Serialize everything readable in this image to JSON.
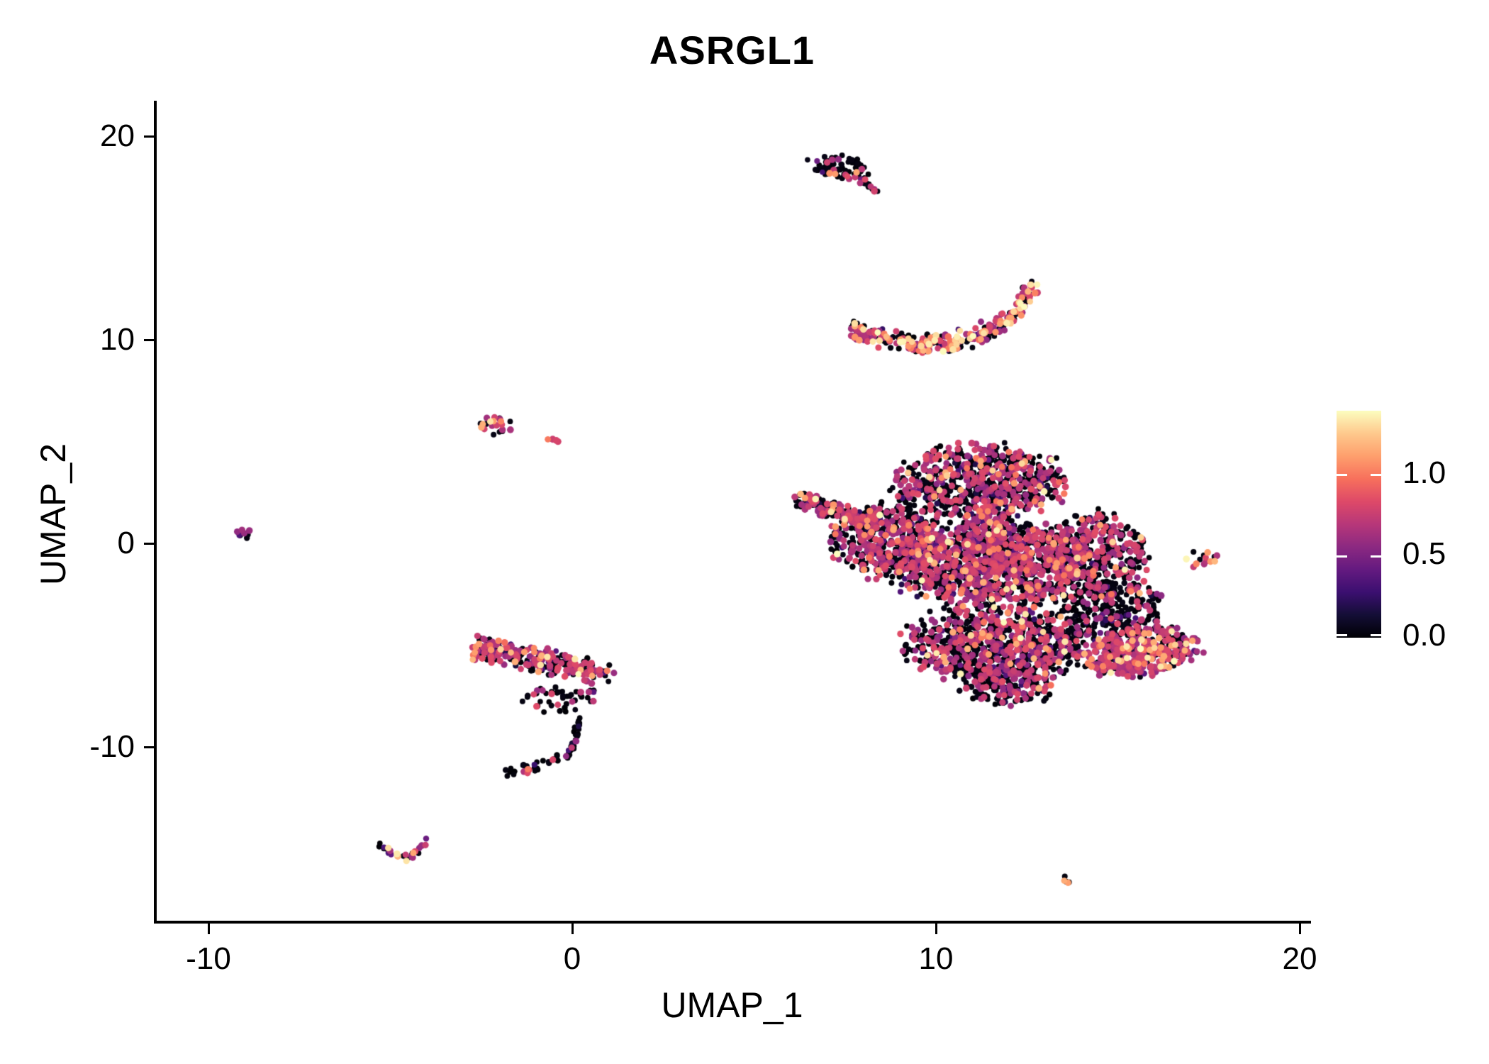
{
  "chart_data": {
    "type": "scatter",
    "title": "ASRGL1",
    "xlabel": "UMAP_1",
    "ylabel": "UMAP_2",
    "x_ticks": [
      -10,
      0,
      10,
      20
    ],
    "y_ticks": [
      20,
      10,
      0,
      -10
    ],
    "xlim": [
      -11.4,
      20.2
    ],
    "ylim": [
      -18.7,
      21.8
    ],
    "grid": false,
    "point_unit": "cells colored by ASRGL1 expression",
    "legend": {
      "position": "right",
      "min": 0.0,
      "max": 1.39,
      "tick_labels": [
        "1.0",
        "0.5",
        "0.0"
      ],
      "tick_values": [
        1.0,
        0.5,
        0.0
      ],
      "colormap": "magma",
      "stops": [
        "#000004",
        "#140E36",
        "#3B0F70",
        "#641A80",
        "#8C2981",
        "#B73779",
        "#DE4968",
        "#F7705C",
        "#FE9F6D",
        "#FEC98D",
        "#FCFDBF"
      ]
    },
    "expression_buckets": [
      {
        "name": "zero",
        "range": [
          0.0,
          0.05
        ]
      },
      {
        "name": "low",
        "range": [
          0.15,
          0.45
        ]
      },
      {
        "name": "mid",
        "range": [
          0.55,
          0.85
        ]
      },
      {
        "name": "high",
        "range": [
          0.95,
          1.2
        ]
      },
      {
        "name": "max",
        "range": [
          1.25,
          1.39
        ]
      }
    ],
    "clusters": [
      {
        "id": "top-blob",
        "shape": "blob",
        "center": [
          7.35,
          18.45
        ],
        "rx": 0.85,
        "ry": 0.62,
        "rot": -25,
        "n": 72,
        "mix": [
          0.84,
          0.04,
          0.08,
          0.02,
          0.02
        ]
      },
      {
        "id": "top-tail",
        "shape": "band",
        "from": [
          7.75,
          18.05
        ],
        "to": [
          8.45,
          17.25
        ],
        "spread": 0.22,
        "n": 16,
        "mix": [
          0.72,
          0.04,
          0.2,
          0.04,
          0.0
        ]
      },
      {
        "id": "crescent",
        "shape": "arc",
        "pts": [
          [
            7.65,
            10.55
          ],
          [
            8.6,
            10.0
          ],
          [
            9.6,
            9.8
          ],
          [
            10.5,
            9.9
          ],
          [
            11.3,
            10.3
          ],
          [
            12.0,
            11.05
          ],
          [
            12.7,
            12.55
          ]
        ],
        "spread": 0.55,
        "n": 310,
        "mix": [
          0.38,
          0.07,
          0.33,
          0.14,
          0.08
        ]
      },
      {
        "id": "left-mid-small",
        "shape": "blob",
        "center": [
          -2.1,
          5.8
        ],
        "rx": 0.55,
        "ry": 0.42,
        "rot": -12,
        "n": 22,
        "mix": [
          0.3,
          0.05,
          0.45,
          0.15,
          0.05
        ]
      },
      {
        "id": "left-mid-satellite",
        "shape": "blob",
        "center": [
          -0.5,
          5.05
        ],
        "rx": 0.2,
        "ry": 0.16,
        "rot": -30,
        "n": 4,
        "mix": [
          0.3,
          0.0,
          0.3,
          0.4,
          0.0
        ]
      },
      {
        "id": "far-left-tiny",
        "shape": "blob",
        "center": [
          -9.0,
          0.5
        ],
        "rx": 0.3,
        "ry": 0.22,
        "rot": -20,
        "n": 9,
        "mix": [
          0.3,
          0.05,
          0.6,
          0.05,
          0.0
        ]
      },
      {
        "id": "sickle-band",
        "shape": "band",
        "from": [
          -2.75,
          -5.1
        ],
        "to": [
          0.95,
          -6.4
        ],
        "spread": 0.75,
        "n": 280,
        "mix": [
          0.48,
          0.06,
          0.38,
          0.06,
          0.02
        ]
      },
      {
        "id": "sickle-scatter",
        "shape": "blob",
        "center": [
          -0.3,
          -7.6
        ],
        "rx": 1.1,
        "ry": 0.75,
        "rot": 0,
        "n": 45,
        "mix": [
          0.72,
          0.04,
          0.22,
          0.02,
          0.0
        ]
      },
      {
        "id": "sickle-hook",
        "shape": "arc",
        "pts": [
          [
            0.2,
            -8.3
          ],
          [
            0.1,
            -9.6
          ],
          [
            -0.1,
            -10.4
          ],
          [
            -0.9,
            -11.0
          ],
          [
            -1.95,
            -11.3
          ]
        ],
        "spread": 0.3,
        "n": 58,
        "mix": [
          0.7,
          0.05,
          0.22,
          0.03,
          0.0
        ]
      },
      {
        "id": "main-arm",
        "shape": "band",
        "from": [
          6.15,
          2.2
        ],
        "to": [
          8.3,
          1.0
        ],
        "spread": 0.5,
        "n": 175,
        "mix": [
          0.52,
          0.06,
          0.36,
          0.05,
          0.01
        ]
      },
      {
        "id": "main-top",
        "shape": "blob",
        "center": [
          11.2,
          3.0
        ],
        "rx": 2.3,
        "ry": 1.8,
        "rot": 0,
        "n": 700,
        "mix": [
          0.52,
          0.06,
          0.37,
          0.04,
          0.01
        ]
      },
      {
        "id": "main-left-wing",
        "shape": "blob",
        "center": [
          8.7,
          0.2
        ],
        "rx": 1.5,
        "ry": 1.9,
        "rot": 0,
        "n": 450,
        "mix": [
          0.5,
          0.06,
          0.38,
          0.05,
          0.01
        ]
      },
      {
        "id": "main-core",
        "shape": "blob",
        "center": [
          11.5,
          -1.0
        ],
        "rx": 2.7,
        "ry": 2.1,
        "rot": 0,
        "n": 1250,
        "mix": [
          0.5,
          0.05,
          0.39,
          0.05,
          0.01
        ]
      },
      {
        "id": "main-lower",
        "shape": "blob",
        "center": [
          11.7,
          -4.9
        ],
        "rx": 2.5,
        "ry": 1.9,
        "rot": 0,
        "n": 850,
        "mix": [
          0.55,
          0.05,
          0.36,
          0.03,
          0.01
        ]
      },
      {
        "id": "main-bottom-tip",
        "shape": "blob",
        "center": [
          12.0,
          -7.0
        ],
        "rx": 1.3,
        "ry": 0.9,
        "rot": 0,
        "n": 160,
        "mix": [
          0.62,
          0.05,
          0.31,
          0.02,
          0.0
        ]
      },
      {
        "id": "main-right-upper",
        "shape": "blob",
        "center": [
          14.5,
          -0.5
        ],
        "rx": 1.4,
        "ry": 2.0,
        "rot": 0,
        "n": 380,
        "mix": [
          0.52,
          0.05,
          0.38,
          0.04,
          0.01
        ]
      },
      {
        "id": "main-right-fringe",
        "shape": "blob",
        "center": [
          14.8,
          -3.2
        ],
        "rx": 1.5,
        "ry": 1.3,
        "rot": 0,
        "n": 230,
        "mix": [
          0.66,
          0.06,
          0.26,
          0.02,
          0.0
        ]
      },
      {
        "id": "main-right-lower",
        "shape": "blob",
        "center": [
          15.6,
          -5.3
        ],
        "rx": 1.6,
        "ry": 1.15,
        "rot": 15,
        "n": 400,
        "mix": [
          0.32,
          0.05,
          0.49,
          0.11,
          0.03
        ]
      },
      {
        "id": "right-small",
        "shape": "blob",
        "center": [
          17.4,
          -0.75
        ],
        "rx": 0.5,
        "ry": 0.55,
        "rot": 0,
        "n": 14,
        "mix": [
          0.28,
          0.05,
          0.42,
          0.15,
          0.1
        ]
      },
      {
        "id": "bottom-v-left",
        "shape": "band",
        "from": [
          -5.35,
          -14.75
        ],
        "to": [
          -4.55,
          -15.55
        ],
        "spread": 0.25,
        "n": 14,
        "mix": [
          0.42,
          0.05,
          0.38,
          0.12,
          0.03
        ]
      },
      {
        "id": "bottom-v-right",
        "shape": "band",
        "from": [
          -4.55,
          -15.55
        ],
        "to": [
          -3.95,
          -14.65
        ],
        "spread": 0.22,
        "n": 13,
        "mix": [
          0.5,
          0.05,
          0.4,
          0.05,
          0.0
        ]
      },
      {
        "id": "bottom-right-tiny",
        "shape": "band",
        "from": [
          13.45,
          -16.35
        ],
        "to": [
          13.75,
          -16.85
        ],
        "spread": 0.12,
        "n": 5,
        "mix": [
          0.4,
          0.0,
          0.1,
          0.5,
          0.0
        ]
      }
    ]
  }
}
